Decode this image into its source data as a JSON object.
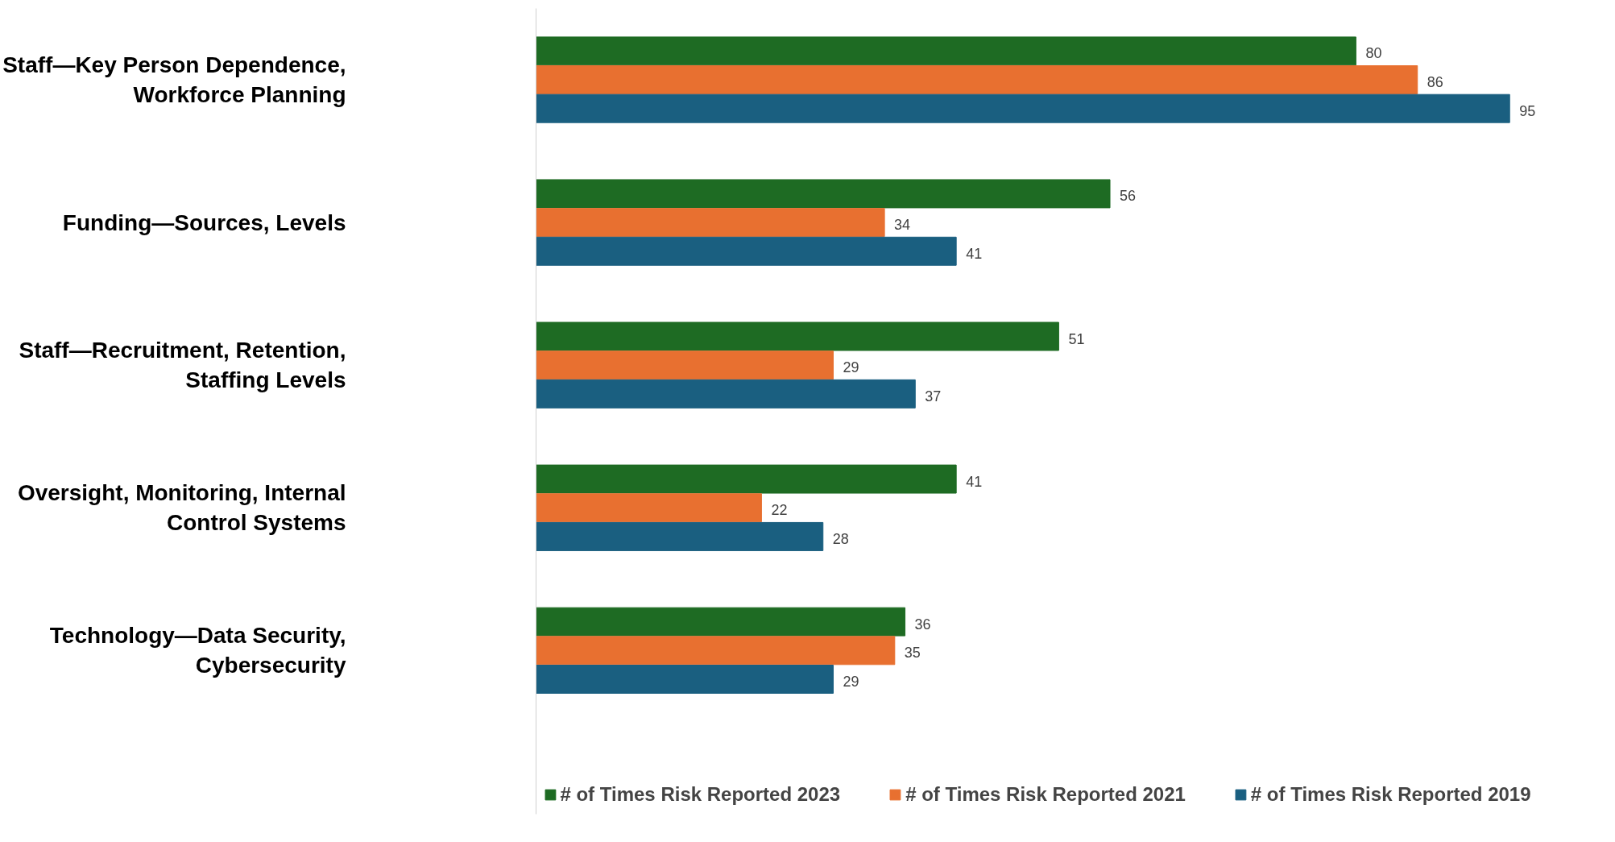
{
  "chart_data": {
    "type": "bar",
    "orientation": "horizontal",
    "data_labels": true,
    "legend": "bottom",
    "categories": [
      "Staff—Key Person Dependence, Workforce Planning",
      "Funding—Sources, Levels",
      "Staff—Recruitment, Retention, Staffing Levels",
      "Oversight, Monitoring, Internal Control Systems",
      "Technology—Data Security, Cybersecurity"
    ],
    "series": [
      {
        "name": "# of Times Risk Reported 2023",
        "color": "#1e6b23",
        "values": [
          80,
          56,
          51,
          41,
          36
        ]
      },
      {
        "name": "# of Times Risk Reported 2021",
        "color": "#e87030",
        "values": [
          86,
          34,
          29,
          22,
          35
        ]
      },
      {
        "name": "# of Times Risk Reported 2019",
        "color": "#1a5f80",
        "values": [
          95,
          41,
          37,
          28,
          29
        ]
      }
    ]
  }
}
